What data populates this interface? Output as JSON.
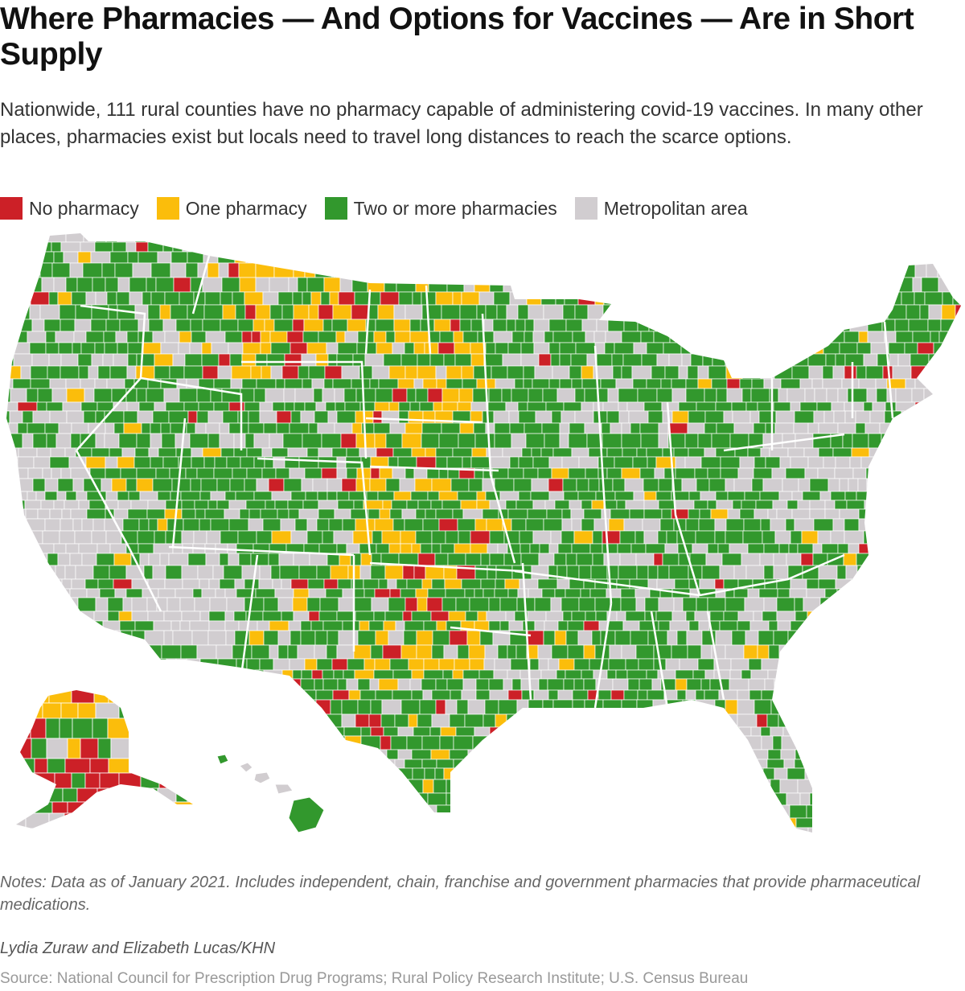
{
  "title": "Where Pharmacies — And Options for Vaccines — Are in Short Supply",
  "subtitle": "Nationwide, 111 rural counties have no pharmacy capable of administering covid-19 vaccines. In many other places, pharmacies exist but locals need to travel long distances to reach the scarce options.",
  "legend": [
    {
      "label": "No pharmacy",
      "color": "#cc2027"
    },
    {
      "label": "One pharmacy",
      "color": "#fbbd0b"
    },
    {
      "label": "Two or more pharmacies",
      "color": "#32982d"
    },
    {
      "label": "Metropolitan area",
      "color": "#d1cdd0"
    }
  ],
  "colors": {
    "border": "#ffffff"
  },
  "notes": "Notes: Data as of January 2021. Includes independent, chain, franchise and government pharmacies that provide pharmaceutical medications.",
  "credit": "Lydia Zuraw and Elizabeth Lucas/KHN",
  "source": "Source: National Council for Prescription Drug Programs; Rural Policy Research Institute; U.S. Census Bureau"
}
